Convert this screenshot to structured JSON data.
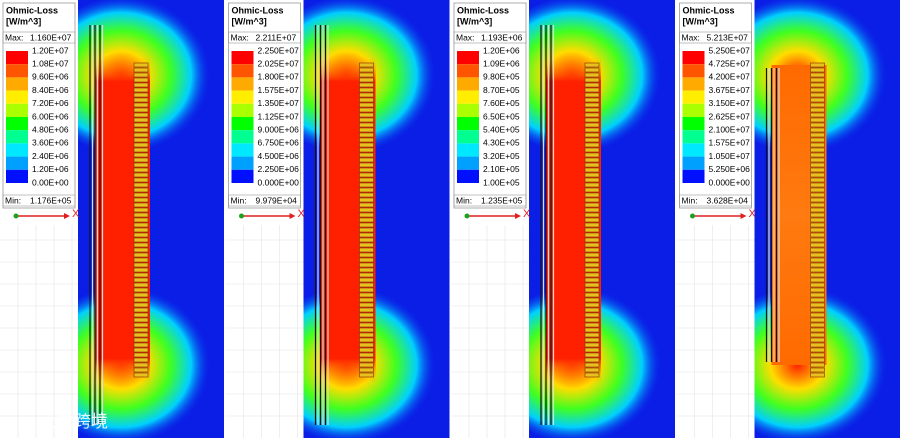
{
  "panels": [
    {
      "title": "Ohmic-Loss",
      "unit": "[W/m^3]",
      "max_label": "Max:",
      "max": "1.160E+07",
      "scale": [
        "1.20E+07",
        "1.08E+07",
        "9.60E+06",
        "8.40E+06",
        "7.20E+06",
        "6.00E+06",
        "4.80E+06",
        "3.60E+06",
        "2.40E+06",
        "1.20E+06",
        "0.00E+00"
      ],
      "min_label": "Min:",
      "min": "1.176E+05",
      "axis_label": "X"
    },
    {
      "title": "Ohmic-Loss",
      "unit": "[W/m^3]",
      "max_label": "Max:",
      "max": "2.211E+07",
      "scale": [
        "2.250E+07",
        "2.025E+07",
        "1.800E+07",
        "1.575E+07",
        "1.350E+07",
        "1.125E+07",
        "9.000E+06",
        "6.750E+06",
        "4.500E+06",
        "2.250E+06",
        "0.000E+00"
      ],
      "min_label": "Min:",
      "min": "9.979E+04",
      "axis_label": "X"
    },
    {
      "title": "Ohmic-Loss",
      "unit": "[W/m^3]",
      "max_label": "Max:",
      "max": "1.193E+06",
      "scale": [
        "1.20E+06",
        "1.09E+06",
        "9.80E+05",
        "8.70E+05",
        "7.60E+05",
        "6.50E+05",
        "5.40E+05",
        "4.30E+05",
        "3.20E+05",
        "2.10E+05",
        "1.00E+05"
      ],
      "min_label": "Min:",
      "min": "1.235E+05",
      "axis_label": "X"
    },
    {
      "title": "Ohmic-Loss",
      "unit": "[W/m^3]",
      "max_label": "Max:",
      "max": "5.213E+07",
      "scale": [
        "5.250E+07",
        "4.725E+07",
        "4.200E+07",
        "3.675E+07",
        "3.150E+07",
        "2.625E+07",
        "2.100E+07",
        "1.575E+07",
        "1.050E+07",
        "5.250E+06",
        "0.000E+00"
      ],
      "min_label": "Min:",
      "min": "3.628E+04",
      "axis_label": "X"
    }
  ],
  "watermark": "大数跨境"
}
